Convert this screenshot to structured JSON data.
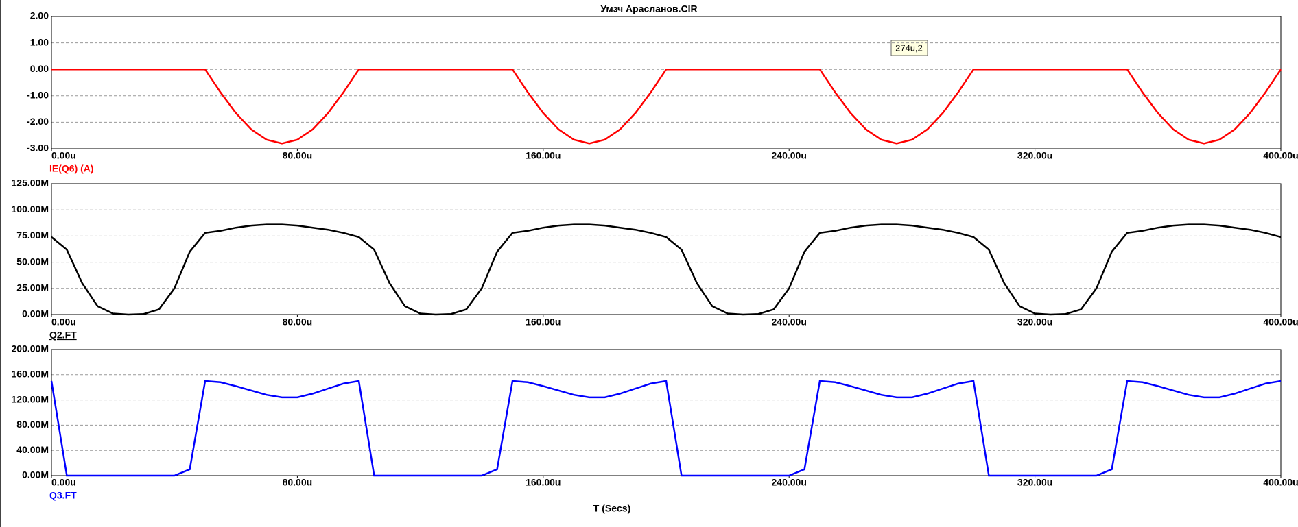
{
  "chart_data": [
    {
      "type": "line",
      "title": "Умзч Арасланов.CIR",
      "annotation": "274u,2",
      "x": [
        0,
        5,
        10,
        15,
        20,
        25,
        30,
        35,
        40,
        45,
        50,
        55,
        60,
        65,
        70,
        75,
        80,
        85,
        90,
        95,
        100,
        105,
        110,
        115,
        120,
        125,
        130,
        135,
        140,
        145,
        150,
        155,
        160,
        165,
        170,
        175,
        180,
        185,
        190,
        195,
        200,
        205,
        210,
        215,
        220,
        225,
        230,
        235,
        240,
        245,
        250,
        255,
        260,
        265,
        270,
        275,
        280,
        285,
        290,
        295,
        300,
        305,
        310,
        315,
        320,
        325,
        330,
        335,
        340,
        345,
        350,
        355,
        360,
        365,
        370,
        375,
        380,
        385,
        390,
        395,
        400
      ],
      "series": [
        {
          "name": "IE(Q6) (A)",
          "color": "#ff0000",
          "values": [
            0,
            0,
            0,
            0,
            0,
            0,
            0,
            0,
            0,
            0,
            0,
            -0.87,
            -1.65,
            -2.27,
            -2.66,
            -2.8,
            -2.66,
            -2.27,
            -1.65,
            -0.87,
            0,
            0,
            0,
            0,
            0,
            0,
            0,
            0,
            0,
            0,
            0,
            -0.87,
            -1.65,
            -2.27,
            -2.66,
            -2.8,
            -2.66,
            -2.27,
            -1.65,
            -0.87,
            0,
            0,
            0,
            0,
            0,
            0,
            0,
            0,
            0,
            0,
            0,
            -0.87,
            -1.65,
            -2.27,
            -2.66,
            -2.8,
            -2.66,
            -2.27,
            -1.65,
            -0.87,
            0,
            0,
            0,
            0,
            0,
            0,
            0,
            0,
            0,
            0,
            0,
            -0.87,
            -1.65,
            -2.27,
            -2.66,
            -2.8,
            -2.66,
            -2.27,
            -1.65,
            -0.87,
            0
          ]
        }
      ],
      "xlim": [
        0,
        400
      ],
      "xticks": [
        {
          "value": 0,
          "label": "0.00u"
        },
        {
          "value": 80,
          "label": "80.00u"
        },
        {
          "value": 160,
          "label": "160.00u"
        },
        {
          "value": 240,
          "label": "240.00u"
        },
        {
          "value": 320,
          "label": "320.00u"
        },
        {
          "value": 400,
          "label": "400.00u"
        }
      ],
      "ylim": [
        -3,
        2
      ],
      "yticks": [
        {
          "value": -3,
          "label": "-3.00"
        },
        {
          "value": -2,
          "label": "-2.00"
        },
        {
          "value": -1,
          "label": "-1.00"
        },
        {
          "value": 0,
          "label": "0.00"
        },
        {
          "value": 1,
          "label": "1.00"
        },
        {
          "value": 2,
          "label": "2.00"
        }
      ],
      "grid": true
    },
    {
      "type": "line",
      "x": [
        0,
        5,
        10,
        15,
        20,
        25,
        30,
        35,
        40,
        45,
        50,
        55,
        60,
        65,
        70,
        75,
        80,
        85,
        90,
        95,
        100,
        105,
        110,
        115,
        120,
        125,
        130,
        135,
        140,
        145,
        150,
        155,
        160,
        165,
        170,
        175,
        180,
        185,
        190,
        195,
        200,
        205,
        210,
        215,
        220,
        225,
        230,
        235,
        240,
        245,
        250,
        255,
        260,
        265,
        270,
        275,
        280,
        285,
        290,
        295,
        300,
        305,
        310,
        315,
        320,
        325,
        330,
        335,
        340,
        345,
        350,
        355,
        360,
        365,
        370,
        375,
        380,
        385,
        390,
        395,
        400
      ],
      "series": [
        {
          "name": "Q2.FT",
          "color": "#000000",
          "values": [
            74,
            62,
            30,
            8,
            1,
            0,
            0.5,
            5,
            25,
            60,
            78,
            80,
            83,
            85,
            86,
            86,
            85,
            83,
            81,
            78,
            74,
            62,
            30,
            8,
            1,
            0,
            0.5,
            5,
            25,
            60,
            78,
            80,
            83,
            85,
            86,
            86,
            85,
            83,
            81,
            78,
            74,
            62,
            30,
            8,
            1,
            0,
            0.5,
            5,
            25,
            60,
            78,
            80,
            83,
            85,
            86,
            86,
            85,
            83,
            81,
            78,
            74,
            62,
            30,
            8,
            1,
            0,
            0.5,
            5,
            25,
            60,
            78,
            80,
            83,
            85,
            86,
            86,
            85,
            83,
            81,
            78,
            74
          ]
        }
      ],
      "xlim": [
        0,
        400
      ],
      "xticks": [
        {
          "value": 0,
          "label": "0.00u"
        },
        {
          "value": 80,
          "label": "80.00u"
        },
        {
          "value": 160,
          "label": "160.00u"
        },
        {
          "value": 240,
          "label": "240.00u"
        },
        {
          "value": 320,
          "label": "320.00u"
        },
        {
          "value": 400,
          "label": "400.00u"
        }
      ],
      "ylim": [
        0,
        125
      ],
      "yticks": [
        {
          "value": 0,
          "label": "0.00M"
        },
        {
          "value": 25,
          "label": "25.00M"
        },
        {
          "value": 50,
          "label": "50.00M"
        },
        {
          "value": 75,
          "label": "75.00M"
        },
        {
          "value": 100,
          "label": "100.00M"
        },
        {
          "value": 125,
          "label": "125.00M"
        }
      ],
      "grid": true
    },
    {
      "type": "line",
      "xlabel": "T (Secs)",
      "x": [
        0,
        5,
        10,
        15,
        20,
        25,
        30,
        35,
        40,
        45,
        50,
        55,
        60,
        65,
        70,
        75,
        80,
        85,
        90,
        95,
        100,
        105,
        110,
        115,
        120,
        125,
        130,
        135,
        140,
        145,
        150,
        155,
        160,
        165,
        170,
        175,
        180,
        185,
        190,
        195,
        200,
        205,
        210,
        215,
        220,
        225,
        230,
        235,
        240,
        245,
        250,
        255,
        260,
        265,
        270,
        275,
        280,
        285,
        290,
        295,
        300,
        305,
        310,
        315,
        320,
        325,
        330,
        335,
        340,
        345,
        350,
        355,
        360,
        365,
        370,
        375,
        380,
        385,
        390,
        395,
        400
      ],
      "series": [
        {
          "name": "Q3.FT",
          "color": "#0000ff",
          "values": [
            150,
            0,
            0,
            0,
            0,
            0,
            0,
            0,
            0,
            10,
            150,
            148,
            142,
            135,
            128,
            124,
            124,
            130,
            138,
            146,
            150,
            0,
            0,
            0,
            0,
            0,
            0,
            0,
            0,
            10,
            150,
            148,
            142,
            135,
            128,
            124,
            124,
            130,
            138,
            146,
            150,
            0,
            0,
            0,
            0,
            0,
            0,
            0,
            0,
            10,
            150,
            148,
            142,
            135,
            128,
            124,
            124,
            130,
            138,
            146,
            150,
            0,
            0,
            0,
            0,
            0,
            0,
            0,
            0,
            10,
            150,
            148,
            142,
            135,
            128,
            124,
            124,
            130,
            138,
            146,
            150
          ]
        }
      ],
      "xlim": [
        0,
        400
      ],
      "xticks": [
        {
          "value": 0,
          "label": "0.00u"
        },
        {
          "value": 80,
          "label": "80.00u"
        },
        {
          "value": 160,
          "label": "160.00u"
        },
        {
          "value": 240,
          "label": "240.00u"
        },
        {
          "value": 320,
          "label": "320.00u"
        },
        {
          "value": 400,
          "label": "400.00u"
        }
      ],
      "ylim": [
        0,
        200
      ],
      "yticks": [
        {
          "value": 0,
          "label": "0.00M"
        },
        {
          "value": 40,
          "label": "40.00M"
        },
        {
          "value": 80,
          "label": "80.00M"
        },
        {
          "value": 120,
          "label": "120.00M"
        },
        {
          "value": 160,
          "label": "160.00M"
        },
        {
          "value": 200,
          "label": "200.00M"
        }
      ],
      "grid": true
    }
  ]
}
